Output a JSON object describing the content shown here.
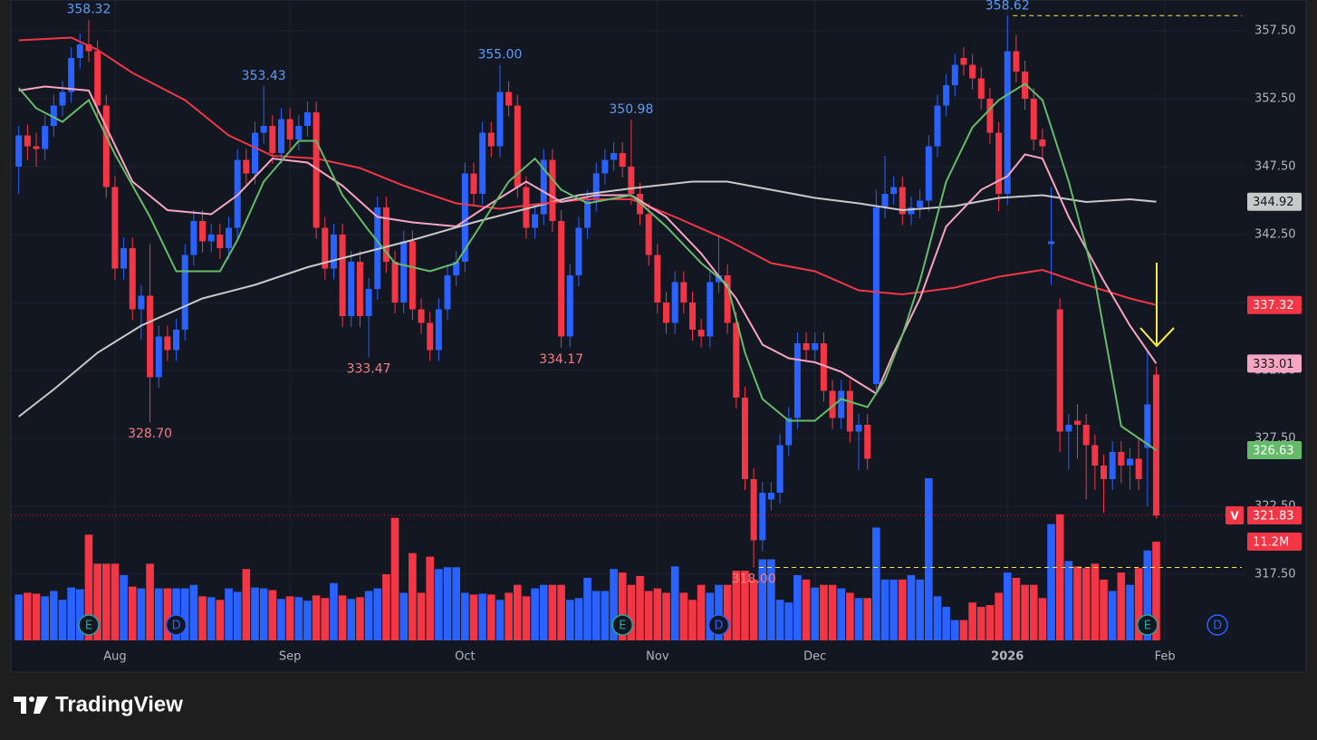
{
  "chart_data": {
    "type": "candlestick",
    "up_color": "#2962ff",
    "down_color": "#f23645",
    "open": [
      347.5,
      349.8,
      349,
      348.8,
      350.5,
      352,
      353,
      355.5,
      356.5,
      356,
      352,
      346,
      340,
      341.5,
      337,
      338,
      332,
      335,
      334,
      335.5,
      341,
      343.5,
      342,
      342.5,
      341.5,
      343,
      348,
      347,
      350,
      350.5,
      348.5,
      351,
      349.5,
      350.5,
      351.5,
      343,
      340,
      342.5,
      336.5,
      340.5,
      336.5,
      338.5,
      344.5,
      340.5,
      337.5,
      342,
      337,
      336,
      334,
      337,
      339.5,
      340.5,
      347,
      345.5,
      350,
      349,
      353,
      352,
      346,
      343,
      344,
      348,
      343.5,
      335,
      339.5,
      343,
      345,
      347,
      348,
      348.5,
      347.5,
      345.5,
      344,
      341,
      337.5,
      336,
      339,
      337.5,
      335.5,
      335,
      339,
      339.5,
      336,
      330.5,
      324.5,
      320,
      323,
      323.5,
      327,
      329,
      334.5,
      334,
      334.5,
      331,
      329,
      331,
      328,
      328.5,
      331.5,
      344.5,
      345.5,
      346,
      344,
      344.5,
      345,
      349,
      352,
      353.5,
      355.5,
      355,
      354,
      352.5,
      350,
      345.5,
      356,
      354.5,
      352.5,
      349.5,
      341.8,
      337,
      328,
      328.8,
      328.5,
      327,
      325.5,
      324.5,
      326.5,
      325.5,
      326,
      326.8,
      332.2
    ],
    "high": [
      350.5,
      350.6,
      350,
      351.3,
      352.8,
      353.8,
      356.3,
      357.3,
      358.32,
      356.8,
      352.8,
      346.8,
      342.3,
      342.3,
      338.8,
      341.8,
      335.8,
      335.8,
      336.3,
      341.8,
      344.3,
      344.3,
      343.3,
      343.3,
      343.8,
      348.8,
      348.8,
      350.8,
      353.43,
      351.3,
      351.8,
      351.8,
      351.3,
      352.3,
      352.3,
      343.8,
      343.3,
      343.3,
      341.3,
      341.3,
      339.3,
      345.3,
      345.3,
      341.3,
      342.8,
      342.8,
      337.8,
      336.8,
      337.8,
      340.3,
      341.3,
      347.8,
      347.8,
      350.8,
      350.8,
      355,
      353.8,
      352.8,
      346.8,
      344.8,
      348.8,
      348.8,
      344.3,
      340.3,
      343.8,
      345.8,
      347.8,
      348.8,
      349.3,
      349.3,
      350.98,
      346.3,
      344.8,
      341.8,
      338.3,
      339.8,
      339.8,
      338.3,
      336.3,
      339.8,
      342.5,
      340.3,
      336.8,
      331.3,
      325.3,
      324.3,
      324.3,
      327.8,
      329.8,
      335.3,
      335.3,
      335.3,
      335.3,
      331.8,
      331.8,
      331.8,
      329.3,
      329.3,
      345.8,
      348.3,
      346.8,
      346.8,
      345.3,
      345.8,
      349.8,
      352.8,
      354.3,
      355.8,
      356.3,
      355.8,
      354.8,
      353.3,
      350.8,
      358.62,
      357.2,
      355.3,
      353.3,
      350.3,
      346,
      337.8,
      329.3,
      330,
      329.3,
      327.8,
      326.3,
      327.3,
      327.3,
      326.8,
      327.5,
      334,
      332.8
    ],
    "low": [
      345.5,
      348,
      347.5,
      348,
      349.7,
      351.2,
      352.2,
      354.7,
      355.2,
      351.2,
      345.2,
      339.2,
      339.2,
      336.2,
      334.8,
      328.7,
      331.2,
      333.2,
      333.2,
      334.7,
      340.2,
      341.2,
      341.2,
      340.7,
      340.7,
      342.2,
      346.2,
      346.2,
      349.2,
      347.7,
      347.7,
      348.7,
      348.7,
      349.7,
      342.2,
      339.2,
      339.2,
      335.7,
      335.7,
      335.7,
      333.47,
      337.7,
      339.7,
      336.7,
      336.7,
      336.2,
      335.2,
      333.2,
      333.2,
      336.2,
      338.7,
      339.7,
      344.7,
      344.7,
      348.2,
      348.2,
      351.2,
      345.2,
      342.2,
      342.2,
      343.2,
      342.7,
      334.17,
      334.2,
      338.7,
      342.2,
      344.2,
      346.2,
      347.2,
      346.7,
      344.7,
      343.2,
      340.2,
      336.7,
      335.2,
      335.2,
      336.7,
      334.7,
      334.2,
      334.2,
      338.2,
      335.2,
      329.7,
      323.7,
      318,
      319.2,
      322.2,
      322.7,
      326.2,
      328.2,
      333.2,
      333.2,
      330.2,
      328.2,
      328.2,
      327.2,
      325.2,
      325.2,
      331,
      343.7,
      344.7,
      343.2,
      343.2,
      343.7,
      344.2,
      348.2,
      351.2,
      352.7,
      354.2,
      353.2,
      351.7,
      349.2,
      344.2,
      344.7,
      353.7,
      351.7,
      348.7,
      348.2,
      338.8,
      326.5,
      325.2,
      326,
      323,
      323.7,
      322,
      323.7,
      324.2,
      323.7,
      323.7,
      322.5,
      321.6
    ],
    "close": [
      349.8,
      349,
      348.8,
      350.5,
      352,
      353,
      355.5,
      356.5,
      356,
      352,
      346,
      340,
      341.5,
      337,
      338,
      332,
      335,
      334,
      335.5,
      341,
      343.5,
      342,
      342.5,
      341.5,
      343,
      348,
      347,
      350,
      350.5,
      348.5,
      351,
      349.5,
      350.5,
      351.5,
      343,
      340,
      342.5,
      336.5,
      340.5,
      336.5,
      338.5,
      344.5,
      340.5,
      337.5,
      342,
      337,
      336,
      334,
      337,
      339.5,
      340.5,
      347,
      345.5,
      350,
      349,
      353,
      352,
      346,
      343,
      344,
      348,
      343.5,
      335,
      339.5,
      343,
      345,
      347,
      348,
      348.5,
      347.5,
      345.5,
      344,
      341,
      337.5,
      336,
      339,
      337.5,
      335.5,
      335,
      339,
      339.5,
      336,
      330.5,
      324.5,
      320,
      323.5,
      323.5,
      327,
      329,
      334.5,
      334,
      334.5,
      331,
      329,
      331,
      328,
      328.5,
      326,
      344.5,
      345.5,
      346,
      344,
      344.5,
      345,
      349,
      352,
      353.5,
      355,
      355,
      354,
      352.5,
      350,
      345.5,
      356,
      354.5,
      352.5,
      349.5,
      349,
      342,
      328,
      328.5,
      328.5,
      327,
      325.5,
      324.5,
      326.5,
      325.5,
      326,
      324.5,
      330,
      321.83
    ],
    "volume": [
      5.2,
      5.4,
      5.3,
      5.0,
      5.6,
      4.6,
      6.0,
      5.8,
      12.0,
      8.7,
      8.7,
      8.7,
      7.4,
      6.1,
      5.9,
      8.7,
      5.9,
      5.9,
      5.9,
      5.9,
      6.3,
      5.0,
      4.9,
      4.6,
      5.9,
      5.5,
      8.1,
      6.0,
      5.9,
      5.7,
      4.7,
      5.0,
      4.9,
      4.5,
      5.1,
      4.8,
      6.5,
      5.1,
      4.7,
      4.9,
      5.6,
      5.9,
      7.5,
      13.9,
      5.4,
      9.9,
      5.4,
      9.5,
      8.1,
      8.3,
      8.3,
      5.4,
      5.2,
      5.3,
      5.2,
      4.6,
      5.4,
      6.3,
      5.0,
      5.9,
      6.3,
      6.3,
      6.3,
      4.6,
      4.8,
      7.1,
      5.6,
      5.6,
      8.1,
      7.7,
      6.3,
      7.3,
      5.6,
      5.9,
      5.4,
      8.4,
      5.4,
      4.6,
      6.3,
      5.4,
      6.3,
      6.3,
      7.9,
      7.9,
      6.9,
      9.2,
      9.2,
      4.6,
      4.3,
      7.4,
      6.9,
      6.0,
      6.3,
      6.3,
      5.9,
      5.4,
      4.8,
      4.8,
      12.8,
      6.9,
      6.9,
      6.9,
      7.4,
      6.9,
      18.4,
      5.0,
      3.8,
      2.3,
      2.3,
      4.3,
      3.8,
      4.0,
      5.4,
      7.7,
      7.1,
      6.3,
      6.3,
      4.8,
      13.2,
      14.3,
      9.0,
      8.4,
      8.2,
      8.7,
      6.9,
      5.6,
      7.7,
      6.3,
      8.2,
      10.2,
      11.2
    ],
    "volume_label": "11.2M",
    "last_price_flag": "V",
    "xlim": [
      -0.9,
      140.2
    ],
    "ylim": [
      312.63,
      359.77
    ],
    "yticks": [
      {
        "value": 357.5,
        "label": "357.50"
      },
      {
        "value": 352.5,
        "label": "352.50"
      },
      {
        "value": 347.5,
        "label": "347.50"
      },
      {
        "value": 342.5,
        "label": "342.50"
      },
      {
        "value": 337.5,
        "label": "337.50"
      },
      {
        "value": 332.5,
        "label": "332.50"
      },
      {
        "value": 327.5,
        "label": "327.50"
      },
      {
        "value": 322.5,
        "label": "322.50"
      },
      {
        "value": 317.5,
        "label": "317.50"
      }
    ],
    "xticks": [
      {
        "value": 11,
        "label": "Aug"
      },
      {
        "value": 31,
        "label": "Sep"
      },
      {
        "value": 51,
        "label": "Oct"
      },
      {
        "value": 73,
        "label": "Nov"
      },
      {
        "value": 91,
        "label": "Dec"
      },
      {
        "value": 113,
        "label": "2026"
      },
      {
        "value": 131,
        "label": "Feb"
      }
    ],
    "grid": true,
    "moving_averages": [
      {
        "color": "#c9c9c9",
        "x": [
          0,
          4,
          9,
          14,
          21,
          27,
          33,
          39,
          45,
          52,
          58,
          64,
          70,
          77,
          81,
          86,
          91,
          96,
          101,
          107,
          112,
          117,
          122,
          127,
          130
        ],
        "values": [
          329.1,
          331.1,
          333.8,
          335.8,
          337.8,
          338.8,
          340.1,
          341.1,
          342.1,
          343.4,
          344.4,
          345.4,
          345.9,
          346.4,
          346.4,
          345.8,
          345.2,
          344.8,
          344.3,
          344.6,
          345.2,
          345.4,
          344.9,
          345.1,
          344.92
        ]
      },
      {
        "color": "#f23645",
        "x": [
          0,
          6,
          9,
          13,
          19,
          24,
          29,
          34,
          39,
          44,
          50,
          55,
          60,
          65,
          70,
          75,
          81,
          86,
          91,
          96,
          101,
          107,
          112,
          117,
          122,
          127,
          130
        ],
        "values": [
          356.8,
          357,
          356.1,
          354.4,
          352.4,
          349.8,
          348.3,
          348.1,
          347.4,
          346.1,
          344.8,
          344.4,
          344.8,
          345.1,
          345.1,
          343.8,
          342.1,
          340.4,
          339.8,
          338.4,
          338.1,
          338.6,
          339.4,
          339.9,
          338.8,
          337.8,
          337.32
        ]
      },
      {
        "color": "#f8a5c2",
        "x": [
          0,
          3,
          8,
          10,
          13,
          17,
          22,
          25,
          29,
          33,
          37,
          41,
          45,
          50,
          54,
          58,
          62,
          66,
          70,
          74,
          78,
          82,
          85,
          88,
          91,
          94,
          98,
          100,
          103,
          106,
          110,
          113,
          115,
          117,
          120,
          124,
          127,
          130
        ],
        "values": [
          353.1,
          353.4,
          353.1,
          350.4,
          346.4,
          344.3,
          344,
          345.4,
          348.1,
          347.8,
          346.1,
          343.8,
          343.4,
          343.1,
          344.8,
          346.4,
          344.9,
          345.4,
          345.4,
          343.8,
          341.1,
          337.8,
          334.4,
          333.4,
          333.1,
          332.4,
          330.8,
          333.8,
          337.8,
          343.1,
          345.8,
          346.8,
          348.4,
          348.1,
          343.8,
          339.1,
          335.8,
          333.01
        ]
      },
      {
        "color": "#66bb6a",
        "x": [
          0,
          2,
          5,
          8,
          11,
          15,
          18,
          23,
          25,
          28,
          32,
          34,
          37,
          40,
          43,
          47,
          50,
          53,
          56,
          59,
          62,
          65,
          70,
          74,
          78,
          81,
          83,
          85,
          88,
          91,
          94,
          97,
          99,
          101,
          103,
          106,
          109,
          112,
          115,
          117,
          120,
          123,
          126,
          130
        ],
        "values": [
          353.3,
          351.8,
          350.8,
          352.4,
          348.4,
          343.8,
          339.8,
          339.8,
          342.1,
          346.4,
          349.4,
          349.4,
          345.4,
          342.8,
          340.4,
          339.8,
          340.4,
          343.4,
          346.4,
          348.1,
          345.8,
          344.8,
          345.4,
          343.1,
          340.4,
          338.8,
          333.8,
          330.4,
          328.8,
          328.8,
          330.4,
          329.8,
          331.8,
          335.1,
          339.1,
          346.4,
          350.4,
          352.4,
          353.6,
          352.4,
          346.4,
          339.1,
          328.4,
          326.63
        ]
      }
    ],
    "extremes": [
      {
        "index": 8,
        "at": "high",
        "label": "358.32"
      },
      {
        "index": 15,
        "at": "low",
        "label": "328.70"
      },
      {
        "index": 28,
        "at": "high",
        "label": "353.43"
      },
      {
        "index": 40,
        "at": "low",
        "label": "333.47"
      },
      {
        "index": 55,
        "at": "high",
        "label": "355.00"
      },
      {
        "index": 62,
        "at": "low",
        "label": "334.17"
      },
      {
        "index": 70,
        "at": "high",
        "label": "350.98"
      },
      {
        "index": 84,
        "at": "low",
        "label": "318.00"
      },
      {
        "index": 113,
        "at": "high",
        "label": "358.62"
      }
    ],
    "events": [
      {
        "index": 8,
        "label": "E"
      },
      {
        "index": 18,
        "label": "D"
      },
      {
        "index": 69,
        "label": "E"
      },
      {
        "index": 80,
        "label": "D"
      },
      {
        "index": 129,
        "label": "E"
      },
      {
        "index": 137,
        "label": "D"
      }
    ]
  },
  "footer": {
    "brand": "TradingView"
  }
}
